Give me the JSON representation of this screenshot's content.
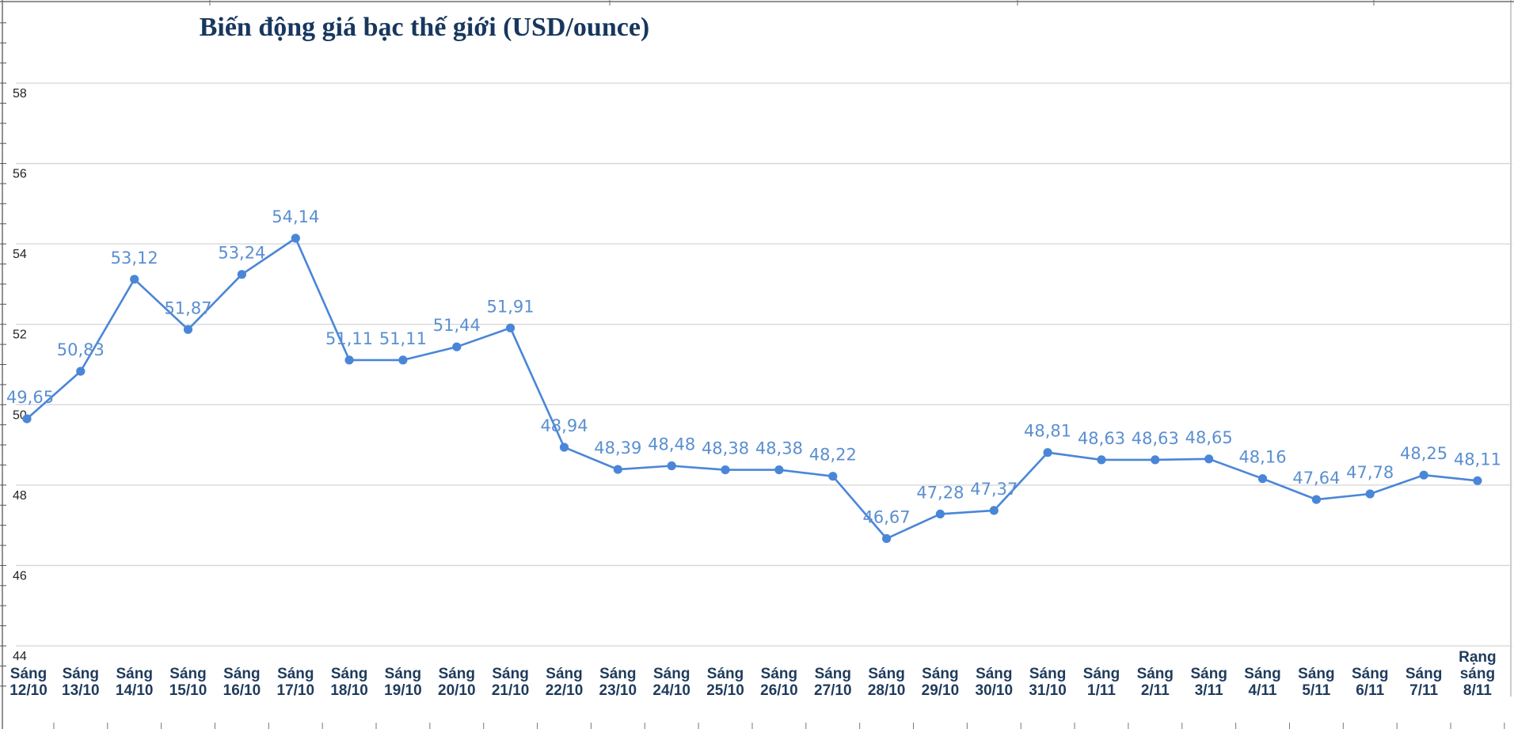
{
  "chart_data": {
    "type": "line",
    "title": "Biến động giá bạc thế giới (USD/ounce)",
    "xlabel": "",
    "ylabel": "",
    "ylim": [
      44,
      58
    ],
    "yticks": [
      "44",
      "46",
      "48",
      "50",
      "52",
      "54",
      "56",
      "58"
    ],
    "grid": true,
    "legend": "none",
    "line_color": "#4a86d8",
    "label_color": "#5b8fd1",
    "categories": [
      [
        "Sáng",
        "12/10"
      ],
      [
        "Sáng",
        "13/10"
      ],
      [
        "Sáng",
        "14/10"
      ],
      [
        "Sáng",
        "15/10"
      ],
      [
        "Sáng",
        "16/10"
      ],
      [
        "Sáng",
        "17/10"
      ],
      [
        "Sáng",
        "18/10"
      ],
      [
        "Sáng",
        "19/10"
      ],
      [
        "Sáng",
        "20/10"
      ],
      [
        "Sáng",
        "21/10"
      ],
      [
        "Sáng",
        "22/10"
      ],
      [
        "Sáng",
        "23/10"
      ],
      [
        "Sáng",
        "24/10"
      ],
      [
        "Sáng",
        "25/10"
      ],
      [
        "Sáng",
        "26/10"
      ],
      [
        "Sáng",
        "27/10"
      ],
      [
        "Sáng",
        "28/10"
      ],
      [
        "Sáng",
        "29/10"
      ],
      [
        "Sáng",
        "30/10"
      ],
      [
        "Sáng",
        "31/10"
      ],
      [
        "Sáng",
        "1/11"
      ],
      [
        "Sáng",
        "2/11"
      ],
      [
        "Sáng",
        "3/11"
      ],
      [
        "Sáng",
        "4/11"
      ],
      [
        "Sáng",
        "5/11"
      ],
      [
        "Sáng",
        "6/11"
      ],
      [
        "Sáng",
        "7/11"
      ],
      [
        "Rạng",
        "sáng",
        "8/11"
      ]
    ],
    "values": [
      49.65,
      50.83,
      53.12,
      51.87,
      53.24,
      54.14,
      51.11,
      51.11,
      51.44,
      51.91,
      48.94,
      48.39,
      48.48,
      48.38,
      48.38,
      48.22,
      46.67,
      47.28,
      47.37,
      48.81,
      48.63,
      48.63,
      48.65,
      48.16,
      47.64,
      47.78,
      48.25,
      48.11
    ],
    "value_labels": [
      "49,65",
      "50,83",
      "53,12",
      "51,87",
      "53,24",
      "54,14",
      "51,11",
      "51,11",
      "51,44",
      "51,91",
      "48,94",
      "48,39",
      "48,48",
      "48,38",
      "48,38",
      "48,22",
      "46,67",
      "47,28",
      "47,37",
      "48,81",
      "48,63",
      "48,63",
      "48,65",
      "48,16",
      "47,64",
      "47,78",
      "48,25",
      "48,11"
    ]
  }
}
